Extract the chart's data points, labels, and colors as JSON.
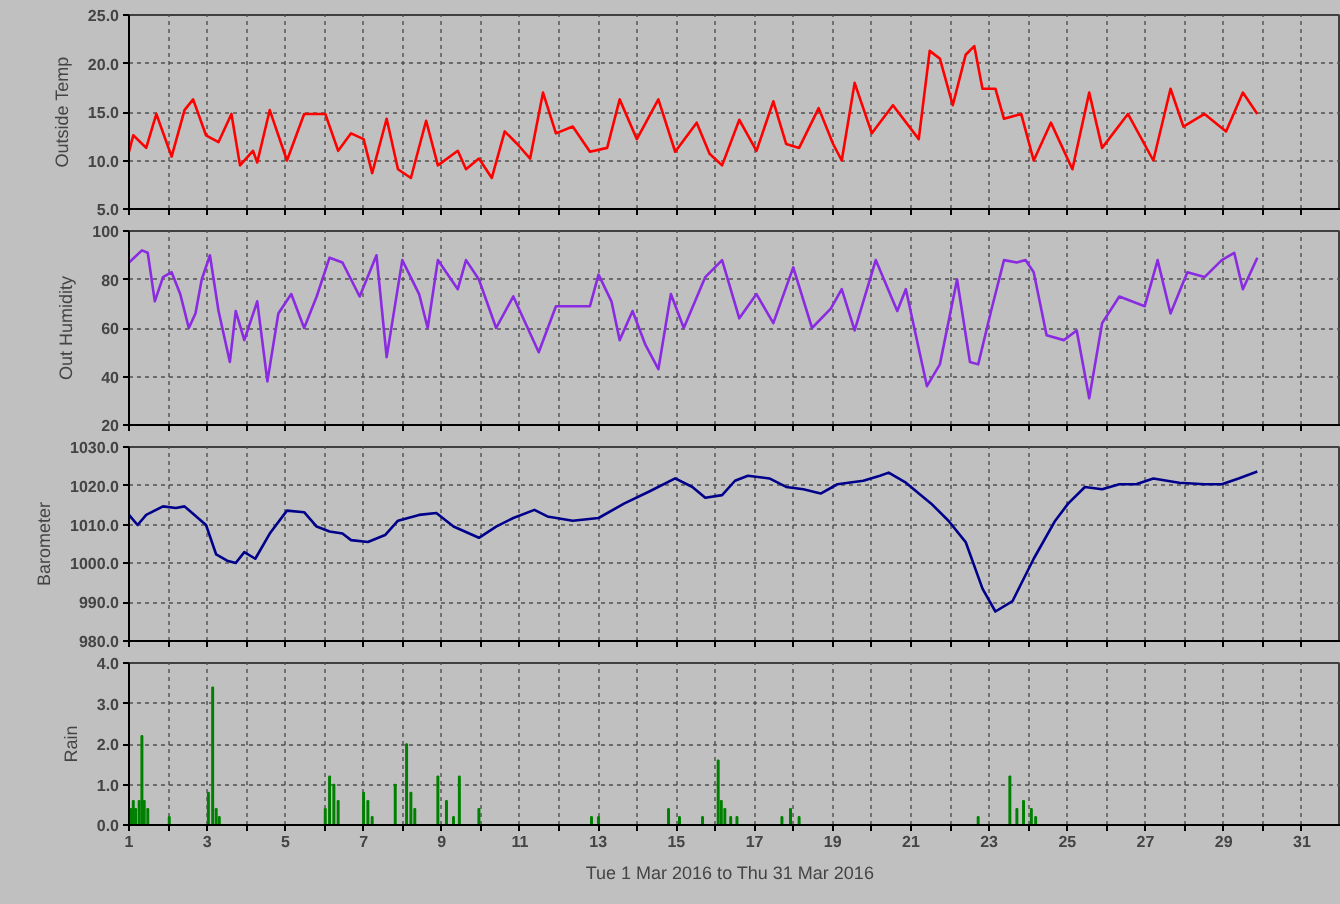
{
  "chart_data": [
    {
      "type": "line",
      "ylabel": "Outside Temp",
      "xlim": [
        1,
        32
      ],
      "ylim": [
        5,
        25
      ],
      "grid": true,
      "tick_labels": "y",
      "xticks": [
        1,
        {
          "value": 2,
          "label": null
        },
        3,
        {
          "value": 4,
          "label": null
        },
        5,
        {
          "value": 6,
          "label": null
        },
        7,
        {
          "value": 8,
          "label": null
        },
        9,
        {
          "value": 10,
          "label": null
        },
        11,
        {
          "value": 12,
          "label": null
        },
        13,
        {
          "value": 14,
          "label": null
        },
        15,
        {
          "value": 16,
          "label": null
        },
        17,
        {
          "value": 18,
          "label": null
        },
        19,
        {
          "value": 20,
          "label": null
        },
        21,
        {
          "value": 22,
          "label": null
        },
        23,
        {
          "value": 24,
          "label": null
        },
        25,
        {
          "value": 26,
          "label": null
        },
        27,
        {
          "value": 28,
          "label": null
        },
        29,
        {
          "value": 30,
          "label": null
        },
        31
      ],
      "yticks": [
        {
          "value": 5,
          "label": "5.0"
        },
        {
          "value": 10,
          "label": "10.0"
        },
        {
          "value": 15,
          "label": "15.0"
        },
        {
          "value": 20,
          "label": "20.0"
        },
        {
          "value": 25,
          "label": "25.0"
        }
      ],
      "series": [
        {
          "color": "#ff0000",
          "x": [
            1.0,
            1.11,
            1.44,
            1.7,
            2.09,
            2.42,
            2.64,
            2.97,
            3.29,
            3.62,
            3.84,
            4.17,
            4.28,
            4.6,
            5.04,
            5.48,
            6.02,
            6.35,
            6.68,
            7.0,
            7.22,
            7.59,
            7.88,
            8.21,
            8.6,
            8.9,
            9.41,
            9.62,
            9.95,
            10.28,
            10.61,
            10.93,
            11.26,
            11.59,
            11.92,
            12.35,
            12.79,
            13.23,
            13.55,
            13.99,
            14.54,
            14.97,
            15.52,
            15.85,
            16.17,
            16.61,
            17.05,
            17.48,
            17.81,
            18.14,
            18.64,
            19.01,
            19.23,
            19.56,
            20.0,
            20.54,
            21.2,
            21.48,
            21.74,
            22.07,
            22.4,
            22.62,
            22.83,
            23.16,
            23.38,
            23.82,
            24.14,
            24.58,
            25.13,
            25.56,
            25.89,
            26.55,
            27.2,
            27.64,
            27.97,
            28.51,
            29.06,
            29.49,
            29.86
          ],
          "values": [
            10.9,
            12.6,
            11.3,
            14.8,
            10.4,
            15.2,
            16.3,
            12.6,
            11.9,
            14.8,
            9.5,
            11.0,
            9.8,
            15.2,
            10.0,
            14.8,
            14.8,
            11.0,
            12.8,
            12.2,
            8.7,
            14.3,
            9.1,
            8.2,
            14.1,
            9.5,
            11.0,
            9.1,
            10.2,
            8.2,
            13.0,
            11.7,
            10.2,
            17.0,
            12.8,
            13.5,
            10.9,
            11.3,
            16.3,
            12.2,
            16.3,
            10.9,
            13.9,
            10.7,
            9.5,
            14.2,
            11.0,
            16.1,
            11.7,
            11.3,
            15.4,
            11.7,
            10.0,
            18.0,
            12.8,
            15.7,
            12.2,
            21.3,
            20.5,
            15.7,
            20.9,
            21.8,
            17.4,
            17.4,
            14.3,
            14.8,
            10.0,
            13.9,
            9.1,
            17.0,
            11.3,
            14.8,
            10.0,
            17.4,
            13.5,
            14.8,
            13.0,
            17.0,
            14.8
          ]
        }
      ]
    },
    {
      "type": "line",
      "ylabel": "Out Humidity",
      "xlim": [
        1,
        32
      ],
      "ylim": [
        20,
        100
      ],
      "grid": true,
      "tick_labels": "y",
      "xticks": [
        1,
        {
          "value": 2,
          "label": null
        },
        3,
        {
          "value": 4,
          "label": null
        },
        5,
        {
          "value": 6,
          "label": null
        },
        7,
        {
          "value": 8,
          "label": null
        },
        9,
        {
          "value": 10,
          "label": null
        },
        11,
        {
          "value": 12,
          "label": null
        },
        13,
        {
          "value": 14,
          "label": null
        },
        15,
        {
          "value": 16,
          "label": null
        },
        17,
        {
          "value": 18,
          "label": null
        },
        19,
        {
          "value": 20,
          "label": null
        },
        21,
        {
          "value": 22,
          "label": null
        },
        23,
        {
          "value": 24,
          "label": null
        },
        25,
        {
          "value": 26,
          "label": null
        },
        27,
        {
          "value": 28,
          "label": null
        },
        29,
        {
          "value": 30,
          "label": null
        },
        31
      ],
      "yticks": [
        20,
        40,
        60,
        80,
        100
      ],
      "series": [
        {
          "color": "#8a2be2",
          "x": [
            1.0,
            1.33,
            1.48,
            1.66,
            1.87,
            2.09,
            2.31,
            2.53,
            2.7,
            2.86,
            3.07,
            3.29,
            3.58,
            3.73,
            3.95,
            4.28,
            4.54,
            4.82,
            5.15,
            5.48,
            5.8,
            6.13,
            6.46,
            6.9,
            7.33,
            7.59,
            7.99,
            8.42,
            8.64,
            8.9,
            9.41,
            9.62,
            9.95,
            10.39,
            10.83,
            11.48,
            11.92,
            12.79,
            13.01,
            13.34,
            13.55,
            13.88,
            14.21,
            14.54,
            14.86,
            15.19,
            15.74,
            16.17,
            16.61,
            17.05,
            17.48,
            17.99,
            18.47,
            18.95,
            19.23,
            19.56,
            20.1,
            20.65,
            20.87,
            21.41,
            21.74,
            22.18,
            22.51,
            22.72,
            23.05,
            23.38,
            23.71,
            23.93,
            24.14,
            24.47,
            24.91,
            25.24,
            25.56,
            25.89,
            26.33,
            26.98,
            27.31,
            27.64,
            28.07,
            28.51,
            28.95,
            29.27,
            29.49,
            29.86
          ],
          "values": [
            87,
            92,
            91,
            71,
            81,
            83,
            74,
            60,
            66,
            80,
            90,
            67,
            46,
            67,
            55,
            71,
            38,
            66,
            74,
            60,
            73,
            89,
            87,
            73,
            90,
            48,
            88,
            74,
            60,
            88,
            76,
            88,
            80,
            60,
            73,
            50,
            69,
            69,
            82,
            71,
            55,
            67,
            53,
            43,
            74,
            60,
            81,
            88,
            64,
            74,
            62,
            85,
            60,
            68,
            76,
            59,
            88,
            67,
            76,
            36,
            45,
            80,
            46,
            45,
            67,
            88,
            87,
            88,
            83,
            57,
            55,
            59,
            31,
            62,
            73,
            69,
            88,
            66,
            83,
            81,
            88,
            91,
            76,
            89
          ]
        }
      ]
    },
    {
      "type": "line",
      "ylabel": "Barometer",
      "xlim": [
        1,
        32
      ],
      "ylim": [
        980,
        1030
      ],
      "grid": true,
      "tick_labels": "y",
      "xticks": [
        1,
        {
          "value": 2,
          "label": null
        },
        3,
        {
          "value": 4,
          "label": null
        },
        5,
        {
          "value": 6,
          "label": null
        },
        7,
        {
          "value": 8,
          "label": null
        },
        9,
        {
          "value": 10,
          "label": null
        },
        11,
        {
          "value": 12,
          "label": null
        },
        13,
        {
          "value": 14,
          "label": null
        },
        15,
        {
          "value": 16,
          "label": null
        },
        17,
        {
          "value": 18,
          "label": null
        },
        19,
        {
          "value": 20,
          "label": null
        },
        21,
        {
          "value": 22,
          "label": null
        },
        23,
        {
          "value": 24,
          "label": null
        },
        25,
        {
          "value": 26,
          "label": null
        },
        27,
        {
          "value": 28,
          "label": null
        },
        29,
        {
          "value": 30,
          "label": null
        },
        31
      ],
      "yticks": [
        {
          "value": 980,
          "label": "980.0"
        },
        {
          "value": 990,
          "label": "990.0"
        },
        {
          "value": 1000,
          "label": "1000.0"
        },
        {
          "value": 1010,
          "label": "1010.0"
        },
        {
          "value": 1020,
          "label": "1020.0"
        },
        {
          "value": 1030,
          "label": "1030.0"
        }
      ],
      "series": [
        {
          "color": "#00008b",
          "x": [
            1.0,
            1.22,
            1.44,
            1.87,
            2.2,
            2.42,
            2.97,
            3.23,
            3.51,
            3.73,
            3.95,
            4.23,
            4.6,
            5.04,
            5.48,
            5.8,
            6.13,
            6.46,
            6.68,
            7.11,
            7.55,
            7.88,
            8.42,
            8.86,
            9.3,
            9.95,
            10.39,
            10.83,
            11.37,
            11.7,
            12.35,
            13.01,
            13.66,
            14.32,
            14.97,
            15.41,
            15.74,
            16.17,
            16.5,
            16.83,
            17.38,
            17.81,
            18.25,
            18.69,
            19.12,
            19.78,
            20.21,
            20.43,
            20.87,
            21.52,
            21.96,
            22.4,
            22.83,
            23.16,
            23.6,
            24.14,
            24.69,
            25.02,
            25.45,
            25.89,
            26.33,
            26.76,
            27.2,
            27.86,
            28.51,
            28.95,
            29.38,
            29.86
          ],
          "values": [
            1012.5,
            1009.9,
            1012.5,
            1014.7,
            1014.3,
            1014.7,
            1009.9,
            1002.3,
            1000.7,
            1000.1,
            1002.9,
            1001.2,
            1007.7,
            1013.6,
            1013.2,
            1009.5,
            1008.2,
            1007.7,
            1006.0,
            1005.5,
            1007.3,
            1011.0,
            1012.5,
            1013.0,
            1009.5,
            1006.6,
            1009.5,
            1011.7,
            1013.8,
            1012.1,
            1011.0,
            1011.7,
            1015.4,
            1018.6,
            1021.9,
            1019.7,
            1016.9,
            1017.6,
            1021.3,
            1022.6,
            1021.9,
            1019.7,
            1019.1,
            1018.0,
            1020.4,
            1021.3,
            1022.6,
            1023.4,
            1020.8,
            1015.4,
            1011.0,
            1005.5,
            993.5,
            987.6,
            990.3,
            1001.2,
            1011.0,
            1015.4,
            1019.7,
            1019.1,
            1020.4,
            1020.4,
            1021.9,
            1020.8,
            1020.4,
            1020.4,
            1021.9,
            1023.7
          ]
        }
      ]
    },
    {
      "type": "bar",
      "ylabel": "Rain",
      "xlabel": "Tue 1 Mar 2016  to  Thu 31 Mar 2016",
      "xlim": [
        1,
        32
      ],
      "ylim": [
        0,
        4
      ],
      "grid": true,
      "xticks": [
        1,
        {
          "value": 2,
          "label": null
        },
        3,
        {
          "value": 4,
          "label": null
        },
        5,
        {
          "value": 6,
          "label": null
        },
        7,
        {
          "value": 8,
          "label": null
        },
        9,
        {
          "value": 10,
          "label": null
        },
        11,
        {
          "value": 12,
          "label": null
        },
        13,
        {
          "value": 14,
          "label": null
        },
        15,
        {
          "value": 16,
          "label": null
        },
        17,
        {
          "value": 18,
          "label": null
        },
        19,
        {
          "value": 20,
          "label": null
        },
        21,
        {
          "value": 22,
          "label": null
        },
        23,
        {
          "value": 24,
          "label": null
        },
        25,
        {
          "value": 26,
          "label": null
        },
        27,
        {
          "value": 28,
          "label": null
        },
        29,
        {
          "value": 30,
          "label": null
        },
        31
      ],
      "yticks": [
        {
          "value": 0,
          "label": "0.0"
        },
        {
          "value": 1,
          "label": "1.0"
        },
        {
          "value": 2,
          "label": "2.0"
        },
        {
          "value": 3,
          "label": "3.0"
        },
        {
          "value": 4,
          "label": "4.0"
        }
      ],
      "series": [
        {
          "color": "#008000",
          "x": [
            1.04,
            1.11,
            1.17,
            1.26,
            1.33,
            1.39,
            1.48,
            2.03,
            3.03,
            3.14,
            3.23,
            3.31,
            6.02,
            6.13,
            6.24,
            6.35,
            7.0,
            7.11,
            7.22,
            7.81,
            8.1,
            8.21,
            8.31,
            8.9,
            9.12,
            9.3,
            9.45,
            9.95,
            12.83,
            13.01,
            14.8,
            15.08,
            15.67,
            16.07,
            16.15,
            16.24,
            16.39,
            16.55,
            17.7,
            17.92,
            18.14,
            22.72,
            23.53,
            23.71,
            23.88,
            24.08,
            24.19
          ],
          "values": [
            0.4,
            0.6,
            0.4,
            0.6,
            2.2,
            0.6,
            0.4,
            0.2,
            0.8,
            3.4,
            0.4,
            0.2,
            0.4,
            1.2,
            1.0,
            0.6,
            0.8,
            0.6,
            0.2,
            1.0,
            2.0,
            0.8,
            0.4,
            1.2,
            0.6,
            0.2,
            1.2,
            0.4,
            0.2,
            0.2,
            0.4,
            0.2,
            0.2,
            1.6,
            0.6,
            0.4,
            0.2,
            0.2,
            0.2,
            0.4,
            0.2,
            0.2,
            1.2,
            0.4,
            0.6,
            0.4,
            0.2
          ]
        }
      ]
    }
  ]
}
